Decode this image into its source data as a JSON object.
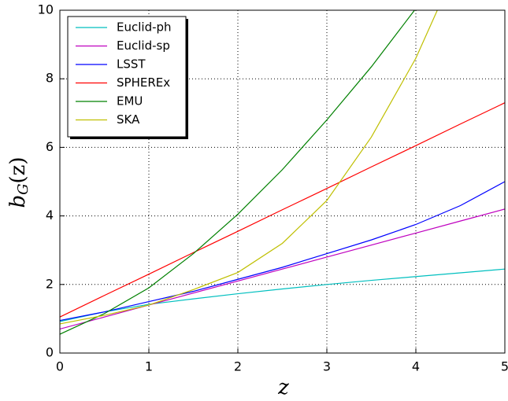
{
  "chart_data": {
    "type": "line",
    "xlabel": "z",
    "ylabel": {
      "base": "b",
      "sub": "G",
      "rest": "(z)"
    },
    "x": [
      0,
      0.5,
      1,
      1.5,
      2,
      2.5,
      3,
      3.5,
      4,
      4.5,
      5
    ],
    "series": [
      {
        "name": "Euclid-ph",
        "color": "#00bfbf",
        "values": [
          0.92,
          1.2,
          1.42,
          1.58,
          1.73,
          1.87,
          2.0,
          2.12,
          2.23,
          2.34,
          2.45
        ]
      },
      {
        "name": "Euclid-sp",
        "color": "#bf00bf",
        "values": [
          0.7,
          1.05,
          1.4,
          1.75,
          2.1,
          2.45,
          2.8,
          3.15,
          3.5,
          3.85,
          4.2
        ]
      },
      {
        "name": "LSST",
        "color": "#0000ff",
        "values": [
          0.95,
          1.2,
          1.5,
          1.8,
          2.15,
          2.5,
          2.9,
          3.3,
          3.75,
          4.3,
          5.0
        ]
      },
      {
        "name": "SPHEREx",
        "color": "#ff0000",
        "values": [
          1.05,
          1.68,
          2.3,
          2.93,
          3.55,
          4.18,
          4.8,
          5.43,
          6.05,
          6.68,
          7.3
        ]
      },
      {
        "name": "EMU",
        "color": "#008000",
        "values": [
          0.55,
          1.15,
          1.9,
          2.9,
          4.05,
          5.35,
          6.8,
          8.35,
          10.05,
          null,
          null
        ]
      },
      {
        "name": "SKA",
        "color": "#bfbf00",
        "values": [
          0.85,
          1.1,
          1.4,
          1.85,
          2.35,
          3.2,
          4.45,
          6.3,
          8.6,
          11.5,
          null
        ]
      }
    ],
    "xlim": [
      0,
      5
    ],
    "ylim": [
      0,
      10
    ],
    "xticks": [
      0,
      1,
      2,
      3,
      4,
      5
    ],
    "yticks": [
      0,
      2,
      4,
      6,
      8,
      10
    ],
    "grid": true,
    "legend": "upper-left"
  }
}
